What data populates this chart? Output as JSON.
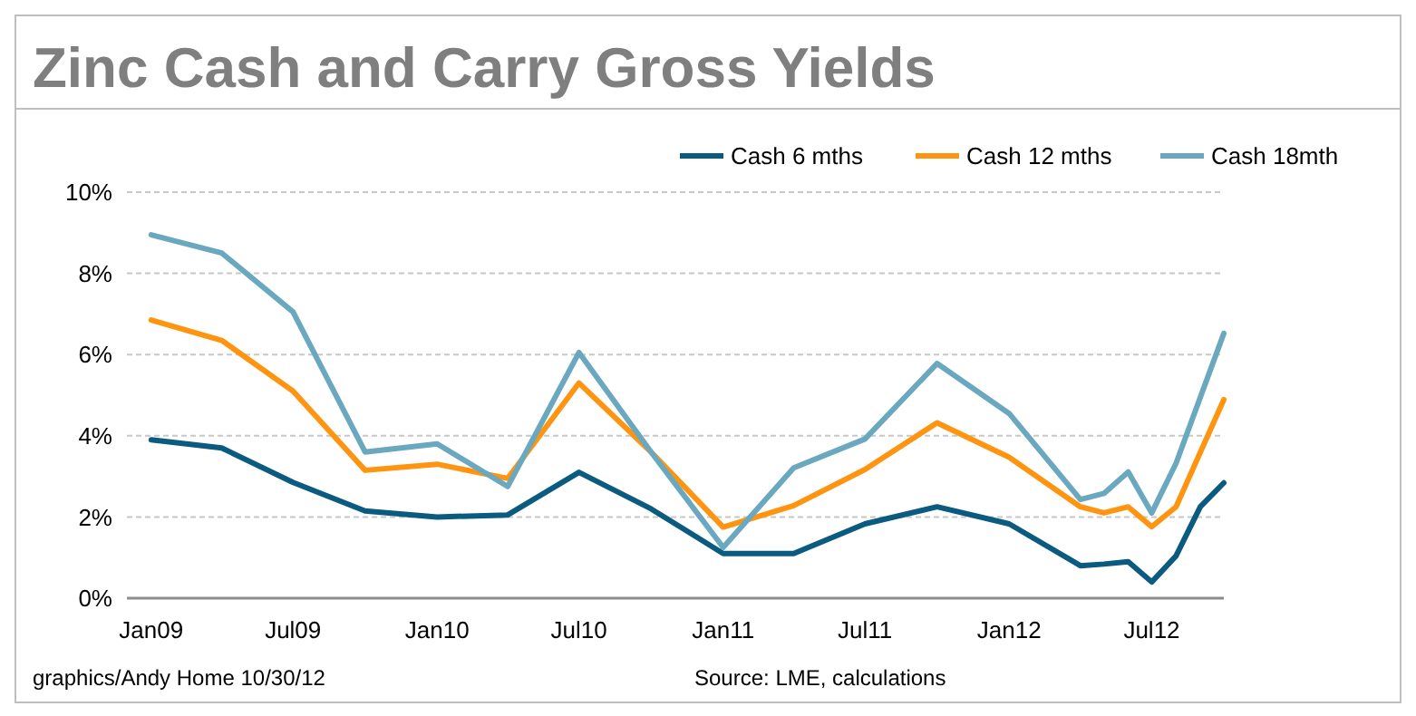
{
  "chart_data": {
    "type": "line",
    "title": "Zinc Cash and Carry Gross Yields",
    "xlim": [
      "2008-12",
      "2012-10"
    ],
    "xticks": [
      {
        "value": "2009-01",
        "label": "Jan09"
      },
      {
        "value": "2009-07",
        "label": "Jul09"
      },
      {
        "value": "2010-01",
        "label": "Jan10"
      },
      {
        "value": "2010-07",
        "label": "Jul10"
      },
      {
        "value": "2011-01",
        "label": "Jan11"
      },
      {
        "value": "2011-07",
        "label": "Jul11"
      },
      {
        "value": "2012-01",
        "label": "Jan12"
      },
      {
        "value": "2012-07",
        "label": "Jul12"
      }
    ],
    "ylim": [
      0,
      10
    ],
    "yticks": [
      {
        "value": 0,
        "label": "0%"
      },
      {
        "value": 2,
        "label": "2%"
      },
      {
        "value": 4,
        "label": "4%"
      },
      {
        "value": 6,
        "label": "6%"
      },
      {
        "value": 8,
        "label": "8%"
      },
      {
        "value": 10,
        "label": "10%"
      }
    ],
    "grid": "y",
    "legend": "top right",
    "line_style": "solid",
    "marker": "none",
    "series": [
      {
        "name": "Cash 6 mths",
        "color": "#0b5a80",
        "x": [
          "2009-01",
          "2009-04",
          "2009-07",
          "2009-10",
          "2010-01",
          "2010-04",
          "2010-07",
          "2010-10",
          "2011-01",
          "2011-04",
          "2011-07",
          "2011-10",
          "2012-01",
          "2012-04",
          "2012-05",
          "2012-06",
          "2012-07",
          "2012-08",
          "2012-09",
          "2012-10"
        ],
        "values": [
          3.9,
          3.7,
          2.85,
          2.15,
          2.0,
          2.05,
          3.1,
          2.2,
          1.1,
          1.1,
          1.83,
          2.25,
          1.83,
          0.8,
          0.84,
          0.9,
          0.4,
          1.04,
          2.25,
          2.84
        ]
      },
      {
        "name": "Cash 12 mths",
        "color": "#ff9410",
        "x": [
          "2009-01",
          "2009-04",
          "2009-07",
          "2009-10",
          "2010-01",
          "2010-04",
          "2010-07",
          "2010-10",
          "2011-01",
          "2011-04",
          "2011-07",
          "2011-10",
          "2012-01",
          "2012-04",
          "2012-05",
          "2012-06",
          "2012-07",
          "2012-08",
          "2012-10"
        ],
        "values": [
          6.85,
          6.35,
          5.1,
          3.15,
          3.3,
          2.95,
          5.3,
          3.6,
          1.75,
          2.28,
          3.17,
          4.32,
          3.47,
          2.25,
          2.1,
          2.25,
          1.76,
          2.25,
          4.89
        ]
      },
      {
        "name": "Cash 18mth",
        "color": "#6aa8c0",
        "x": [
          "2009-01",
          "2009-04",
          "2009-07",
          "2009-10",
          "2010-01",
          "2010-04",
          "2010-07",
          "2010-10",
          "2011-01",
          "2011-04",
          "2011-07",
          "2011-10",
          "2012-01",
          "2012-04",
          "2012-05",
          "2012-06",
          "2012-07",
          "2012-08",
          "2012-10"
        ],
        "values": [
          8.95,
          8.5,
          7.05,
          3.6,
          3.8,
          2.75,
          6.05,
          3.6,
          1.25,
          3.21,
          3.92,
          5.78,
          4.55,
          2.43,
          2.58,
          3.11,
          2.1,
          3.32,
          6.52
        ]
      }
    ],
    "annotations": [
      "graphics/Andy Home 10/30/12",
      "Source: LME, calculations"
    ]
  }
}
